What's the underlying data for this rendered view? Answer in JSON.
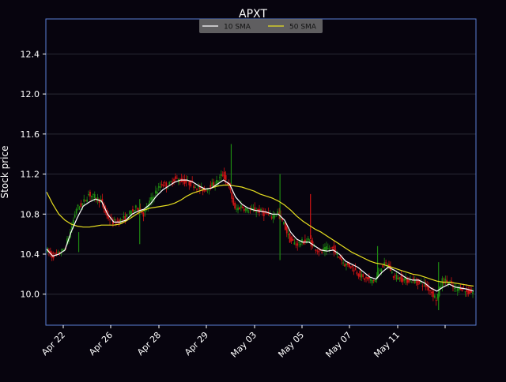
{
  "chart_data": {
    "type": "candlestick",
    "title": "APXT",
    "ylabel": "Stock price",
    "xlabel": "",
    "ylim": [
      9.69,
      12.75
    ],
    "yticks": [
      10.0,
      10.4,
      10.8,
      11.2,
      11.6,
      12.0,
      12.4
    ],
    "ytick_labels": [
      "10.0",
      "10.4",
      "10.8",
      "11.2",
      "11.6",
      "12.0",
      "12.4"
    ],
    "xtick_labels": [
      "Apr 22",
      "Apr 26",
      "Apr 28",
      "Apr 29",
      "May 03",
      "May 05",
      "May 07",
      "May 11",
      ""
    ],
    "grid": true,
    "legend": {
      "placement": "top-center",
      "entries": [
        "10 SMA",
        "50 SMA"
      ]
    },
    "colors": {
      "background": "#07040e",
      "axes_edge": "#5b7fd6",
      "grid": "#2a2a36",
      "text": "#ffffff",
      "up": "#1f8a12",
      "down": "#d11414",
      "sma10": "#ffffff",
      "sma50": "#e8e020",
      "legend_bg": "#6e6e6e"
    },
    "series": [
      {
        "name": "10 SMA",
        "values": [
          10.45,
          10.38,
          10.4,
          10.44,
          10.62,
          10.76,
          10.88,
          10.92,
          10.95,
          10.93,
          10.8,
          10.72,
          10.72,
          10.74,
          10.8,
          10.83,
          10.85,
          10.9,
          10.98,
          11.04,
          11.08,
          11.12,
          11.14,
          11.14,
          11.12,
          11.08,
          11.05,
          11.06,
          11.1,
          11.14,
          11.1,
          10.97,
          10.9,
          10.86,
          10.84,
          10.83,
          10.82,
          10.8,
          10.8,
          10.74,
          10.62,
          10.55,
          10.52,
          10.52,
          10.48,
          10.44,
          10.43,
          10.44,
          10.4,
          10.33,
          10.3,
          10.27,
          10.22,
          10.17,
          10.15,
          10.22,
          10.27,
          10.24,
          10.2,
          10.16,
          10.14,
          10.14,
          10.11,
          10.06,
          10.03,
          10.07,
          10.1,
          10.07,
          10.06,
          10.05,
          10.03
        ]
      },
      {
        "name": "50 SMA",
        "values": [
          11.02,
          10.9,
          10.8,
          10.74,
          10.7,
          10.68,
          10.67,
          10.67,
          10.68,
          10.69,
          10.69,
          10.69,
          10.7,
          10.73,
          10.77,
          10.81,
          10.84,
          10.86,
          10.87,
          10.88,
          10.89,
          10.91,
          10.94,
          10.98,
          11.01,
          11.03,
          11.05,
          11.06,
          11.08,
          11.09,
          11.09,
          11.08,
          11.07,
          11.05,
          11.03,
          11.0,
          10.98,
          10.96,
          10.93,
          10.89,
          10.84,
          10.78,
          10.73,
          10.69,
          10.65,
          10.62,
          10.58,
          10.54,
          10.5,
          10.46,
          10.42,
          10.39,
          10.36,
          10.33,
          10.31,
          10.3,
          10.28,
          10.26,
          10.24,
          10.22,
          10.2,
          10.19,
          10.17,
          10.15,
          10.13,
          10.12,
          10.12,
          10.11,
          10.1,
          10.09,
          10.08
        ]
      },
      {
        "name": "close",
        "values": [
          10.45,
          10.38,
          10.4,
          10.44,
          10.62,
          10.86,
          10.9,
          11.0,
          10.97,
          10.93,
          10.78,
          10.72,
          10.73,
          10.76,
          10.82,
          10.87,
          10.8,
          10.92,
          11.02,
          11.1,
          11.08,
          11.15,
          11.14,
          11.12,
          11.1,
          11.06,
          11.04,
          11.08,
          11.12,
          11.2,
          11.08,
          10.84,
          10.88,
          10.84,
          10.84,
          10.83,
          10.8,
          10.78,
          10.82,
          10.7,
          10.54,
          10.5,
          10.52,
          10.54,
          10.47,
          10.42,
          10.45,
          10.46,
          10.38,
          10.3,
          10.28,
          10.22,
          10.16,
          10.14,
          10.14,
          10.28,
          10.3,
          10.18,
          10.16,
          10.14,
          10.14,
          10.12,
          10.1,
          10.04,
          9.95,
          10.14,
          10.12,
          10.05,
          10.07,
          10.02,
          10.02
        ]
      }
    ]
  }
}
